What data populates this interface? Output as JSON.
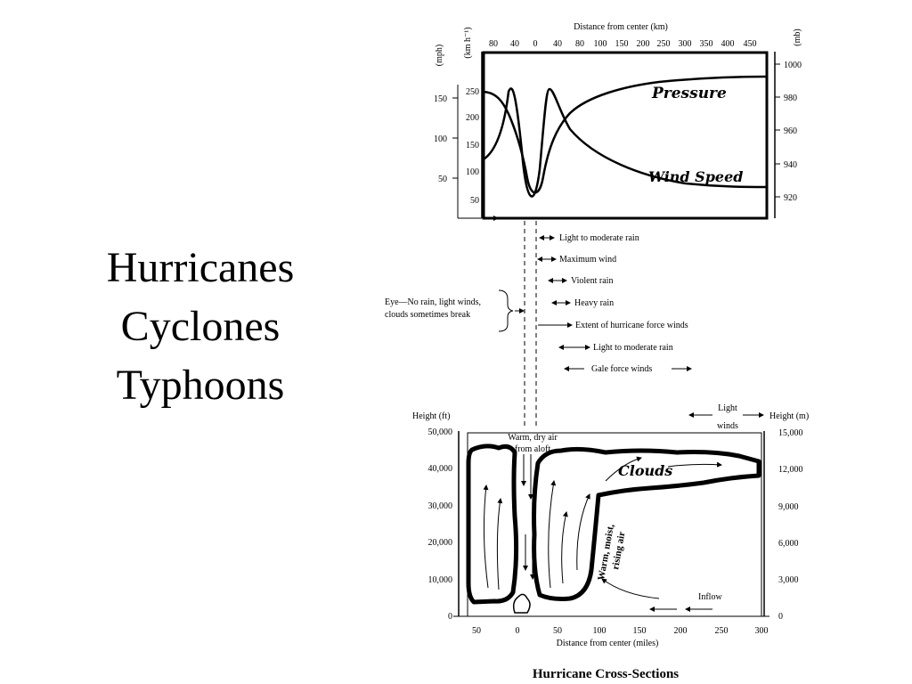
{
  "title_lines": [
    "Hurricanes",
    "Cyclones",
    "Typhoons"
  ],
  "top_chart": {
    "x_title": "Distance from center (km)",
    "x_ticks": [
      "80",
      "40",
      "0",
      "40",
      "80",
      "100",
      "150",
      "200",
      "250",
      "300",
      "350",
      "400",
      "450"
    ],
    "left_units": [
      "(mph)",
      "(km h⁻¹)"
    ],
    "mph_ticks": [
      "150",
      "100",
      "50"
    ],
    "kmh_ticks": [
      "250",
      "200",
      "150",
      "100",
      "50"
    ],
    "right_unit": "(mb)",
    "mb_ticks": [
      "1000",
      "980",
      "960",
      "940",
      "920"
    ],
    "pressure_label": "Pressure",
    "wind_label": "Wind Speed"
  },
  "legend": {
    "eye_line1": "Eye—No rain, light winds,",
    "eye_line2": "clouds sometimes break",
    "items": [
      "Light to moderate rain",
      "Maximum wind",
      "Violent rain",
      "Heavy rain",
      "Extent of hurricane force winds",
      "Light to moderate rain",
      "Gale force winds"
    ]
  },
  "bottom_chart": {
    "y_left_title": "Height (ft)",
    "y_left_ticks": [
      "50,000",
      "40,000",
      "30,000",
      "20,000",
      "10,000",
      "0"
    ],
    "y_right_title": "Height (m)",
    "y_right_ticks": [
      "15,000",
      "12,000",
      "9,000",
      "6,000",
      "3,000",
      "0"
    ],
    "x_ticks": [
      "50",
      "0",
      "50",
      "100",
      "150",
      "200",
      "250",
      "300"
    ],
    "x_title": "Distance from center (miles)",
    "light_winds_1": "Light",
    "light_winds_2": "winds",
    "warm_dry_1": "Warm, dry air",
    "warm_dry_2": "from aloft",
    "clouds_label": "Clouds",
    "rising_1": "Warm, moist,",
    "rising_2": "rising air",
    "inflow_label": "Inflow"
  },
  "caption": "Hurricane Cross-Sections"
}
